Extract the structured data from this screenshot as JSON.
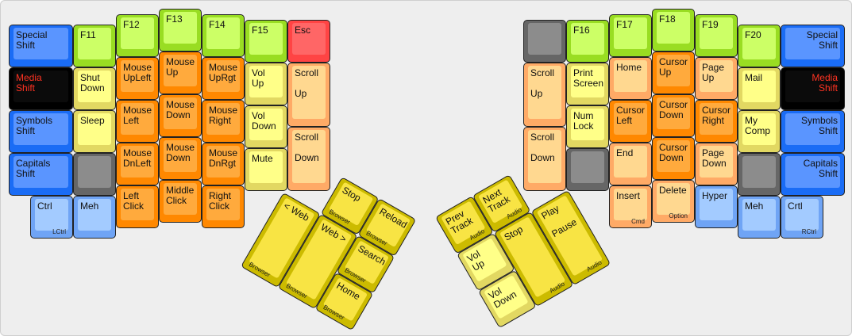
{
  "colors": {
    "blue": [
      "#1a6cf5",
      "#5a95ff"
    ],
    "black": [
      "#000000",
      "#0b0b0b"
    ],
    "lightblue": [
      "#6fa4f5",
      "#a3cbff"
    ],
    "green": [
      "#99dd22",
      "#ccff66"
    ],
    "yellow": [
      "#e2d862",
      "#ffff88"
    ],
    "gray": [
      "#666666",
      "#8c8c8c"
    ],
    "orange": [
      "#ff8800",
      "#ffaa3d"
    ],
    "lightorange": [
      "#ffaa66",
      "#ffd890"
    ],
    "red": [
      "#ff4444",
      "#ff6666"
    ],
    "thumb": [
      "#ccbb00",
      "#f8e444"
    ],
    "media_text": "#ff3322"
  },
  "left": {
    "keys": [
      {
        "label": "Special\nShift",
        "color": "blue"
      },
      {
        "label": "Media\nShift",
        "color": "black"
      },
      {
        "label": "Symbols\nShift",
        "color": "blue"
      },
      {
        "label": "Capitals\nShift",
        "color": "blue"
      },
      {
        "label": "Ctrl",
        "sub": "LCtrl",
        "color": "lightblue"
      },
      {
        "label": "F11",
        "color": "green"
      },
      {
        "label": "Shut\nDown",
        "color": "yellow"
      },
      {
        "label": "Sleep",
        "color": "yellow"
      },
      {
        "label": "",
        "color": "gray"
      },
      {
        "label": "Meh",
        "color": "lightblue"
      },
      {
        "label": "F12",
        "color": "green"
      },
      {
        "label": "Mouse\nUpLeft",
        "color": "orange"
      },
      {
        "label": "Mouse\nLeft",
        "color": "orange"
      },
      {
        "label": "Mouse\nDnLeft",
        "color": "orange"
      },
      {
        "label": "Left\nClick",
        "color": "orange"
      },
      {
        "label": "F13",
        "color": "green"
      },
      {
        "label": "Mouse\nUp",
        "color": "orange"
      },
      {
        "label": "Mouse\nDown",
        "color": "orange"
      },
      {
        "label": "Mouse\nDown",
        "color": "orange"
      },
      {
        "label": "Middle\nClick",
        "color": "orange"
      },
      {
        "label": "F14",
        "color": "green"
      },
      {
        "label": "Mouse\nUpRgt",
        "color": "orange"
      },
      {
        "label": "Mouse\nRight",
        "color": "orange"
      },
      {
        "label": "Mouse\nDnRgt",
        "color": "orange"
      },
      {
        "label": "Right\nClick",
        "color": "orange"
      },
      {
        "label": "F15",
        "color": "green"
      },
      {
        "label": "Vol\nUp",
        "color": "yellow"
      },
      {
        "label": "Vol\nDown",
        "color": "yellow"
      },
      {
        "label": "Mute",
        "color": "yellow"
      },
      {
        "label": "Esc",
        "color": "red"
      },
      {
        "label": "Scroll\n\nUp",
        "color": "lightorange"
      },
      {
        "label": "Scroll\n\nDown",
        "color": "lightorange"
      }
    ],
    "thumb": [
      {
        "label": "Stop",
        "sub": "Browser",
        "color": "thumb"
      },
      {
        "label": "Reload",
        "sub": "Browser",
        "color": "thumb"
      },
      {
        "label": "< Web",
        "sub": "Browser",
        "color": "thumb"
      },
      {
        "label": "Web >",
        "sub": "Browser",
        "color": "thumb"
      },
      {
        "label": "Search",
        "sub": "Browser",
        "color": "thumb"
      },
      {
        "label": "Home",
        "sub": "Browser",
        "color": "thumb"
      }
    ]
  },
  "right": {
    "keys": [
      {
        "label": "",
        "color": "gray"
      },
      {
        "label": "Scroll\n\nUp",
        "color": "lightorange"
      },
      {
        "label": "Scroll\n\nDown",
        "color": "lightorange"
      },
      {
        "label": "F16",
        "color": "green"
      },
      {
        "label": "Print\nScreen",
        "color": "yellow"
      },
      {
        "label": "Num\nLock",
        "color": "yellow"
      },
      {
        "label": "",
        "color": "gray"
      },
      {
        "label": "F17",
        "color": "green"
      },
      {
        "label": "Home",
        "color": "lightorange"
      },
      {
        "label": "Cursor\nLeft",
        "color": "orange"
      },
      {
        "label": "End",
        "color": "lightorange"
      },
      {
        "label": "Insert",
        "sub": "Cmd",
        "color": "lightorange"
      },
      {
        "label": "F18",
        "color": "green"
      },
      {
        "label": "Cursor\nUp",
        "color": "orange"
      },
      {
        "label": "Cursor\nDown",
        "color": "orange"
      },
      {
        "label": "Cursor\nDown",
        "color": "orange"
      },
      {
        "label": "Delete",
        "sub": "Option",
        "color": "lightorange"
      },
      {
        "label": "F19",
        "color": "green"
      },
      {
        "label": "Page\nUp",
        "color": "lightorange"
      },
      {
        "label": "Cursor\nRight",
        "color": "orange"
      },
      {
        "label": "Page\nDown",
        "color": "lightorange"
      },
      {
        "label": "Hyper",
        "color": "lightblue"
      },
      {
        "label": "F20",
        "color": "green"
      },
      {
        "label": "Mail",
        "color": "yellow"
      },
      {
        "label": "My\nComp",
        "color": "yellow"
      },
      {
        "label": "",
        "color": "gray"
      },
      {
        "label": "Meh",
        "color": "lightblue"
      },
      {
        "label": "Special\nShift",
        "color": "blue"
      },
      {
        "label": "Media\nShift",
        "color": "black"
      },
      {
        "label": "Symbols\nShift",
        "color": "blue"
      },
      {
        "label": "Capitals\nShift",
        "color": "blue"
      },
      {
        "label": "Crtl",
        "sub": "RCtrl",
        "color": "lightblue"
      }
    ],
    "thumb": [
      {
        "label": "Prev\nTrack",
        "sub": "Audio",
        "color": "thumb"
      },
      {
        "label": "Next\nTrack",
        "sub": "Audio",
        "color": "thumb"
      },
      {
        "label": "Vol\nUp",
        "color": "yellow"
      },
      {
        "label": "Stop",
        "sub": "Audio",
        "color": "thumb"
      },
      {
        "label": "Play\n\nPause",
        "sub": "Audio",
        "color": "thumb"
      },
      {
        "label": "Vol\nDown",
        "color": "yellow"
      }
    ]
  }
}
